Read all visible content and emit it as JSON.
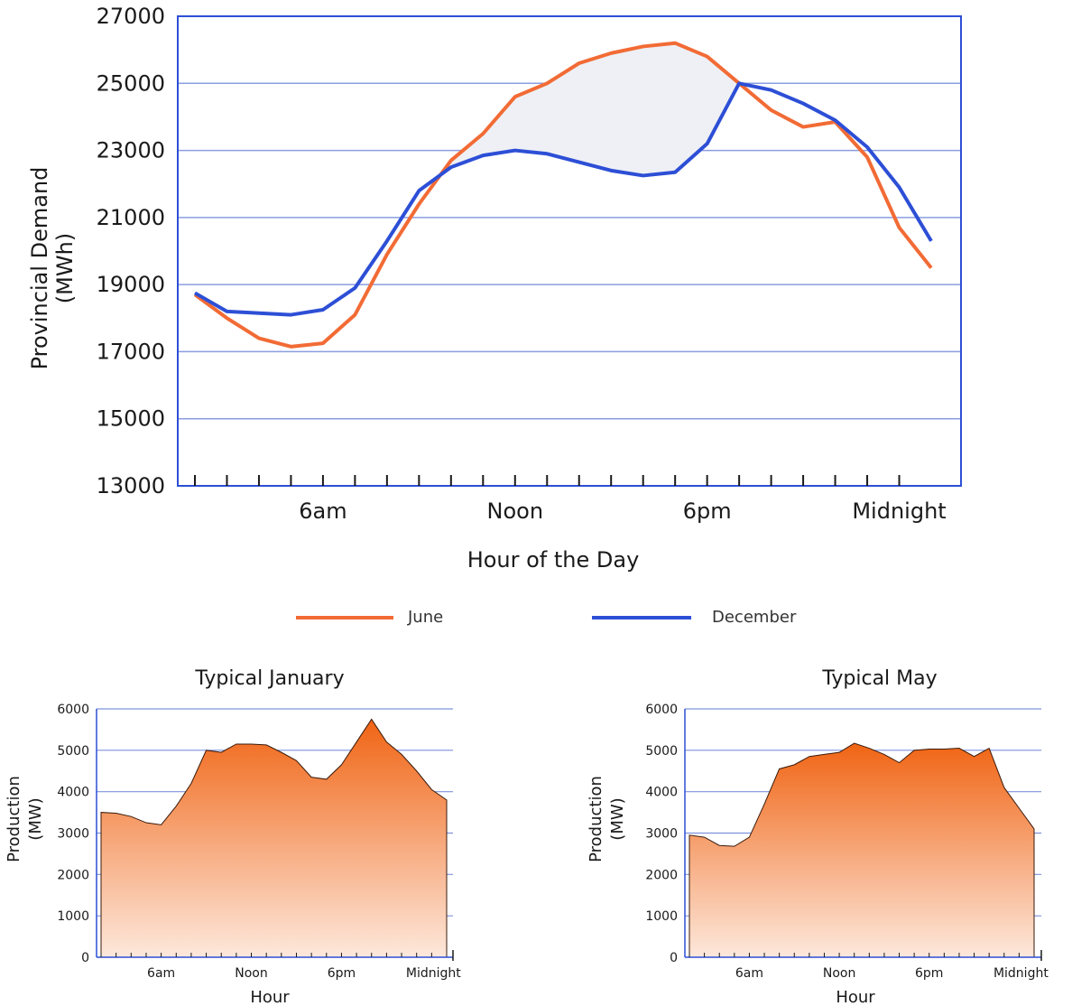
{
  "chart_data": [
    {
      "type": "line",
      "ylabel_line1": "Provincial Demand",
      "ylabel_line2": "(MWh)",
      "xlabel": "Hour of the Day",
      "ylim": [
        13000,
        27000
      ],
      "yticks": [
        "13000",
        "15000",
        "17000",
        "19000",
        "21000",
        "23000",
        "25000",
        "27000"
      ],
      "xtick_labels": [
        {
          "hour": 6,
          "label": "6am"
        },
        {
          "hour": 12,
          "label": "Noon"
        },
        {
          "hour": 18,
          "label": "6pm"
        },
        {
          "hour": 24,
          "label": "Midnight"
        }
      ],
      "x": [
        1,
        2,
        3,
        4,
        5,
        6,
        7,
        8,
        9,
        10,
        11,
        12,
        13,
        14,
        15,
        16,
        17,
        18,
        19,
        20,
        21,
        22,
        23,
        24
      ],
      "grid": true,
      "legend_position": "bottom",
      "series": [
        {
          "name": "June",
          "color": "#f26b35",
          "values": [
            18700,
            18000,
            17400,
            17150,
            17250,
            18100,
            19900,
            21400,
            22700,
            23500,
            24600,
            25000,
            25600,
            25900,
            26100,
            26200,
            25800,
            25000,
            24200,
            23700,
            23850,
            22800,
            20700,
            19500
          ]
        },
        {
          "name": "December",
          "color": "#2d4fd6",
          "values": [
            18750,
            18200,
            18150,
            18100,
            18250,
            18900,
            20300,
            21800,
            22500,
            22850,
            23000,
            22900,
            22650,
            22400,
            22250,
            22350,
            23200,
            25000,
            24800,
            24400,
            23900,
            23100,
            21900,
            20300
          ]
        }
      ],
      "shaded_between": "June and December",
      "shade_color": "#eef0f5"
    },
    {
      "type": "area",
      "title": "Typical January",
      "ylabel_line1": "Production",
      "ylabel_line2": "(MW)",
      "xlabel": "Hour",
      "ylim": [
        0,
        6000
      ],
      "yticks": [
        "0",
        "1000",
        "2000",
        "3000",
        "4000",
        "5000",
        "6000"
      ],
      "xtick_labels": [
        {
          "hour": 6,
          "label": "6am"
        },
        {
          "hour": 12,
          "label": "Noon"
        },
        {
          "hour": 18,
          "label": "6pm"
        },
        {
          "hour": 24,
          "label": "Midnight"
        }
      ],
      "x": [
        1,
        2,
        3,
        4,
        5,
        6,
        7,
        8,
        9,
        10,
        11,
        12,
        13,
        14,
        15,
        16,
        17,
        18,
        19,
        20,
        21,
        22,
        23,
        24
      ],
      "values": [
        3500,
        3480,
        3400,
        3250,
        3200,
        3650,
        4200,
        5000,
        4950,
        5150,
        5150,
        5130,
        4950,
        4750,
        4350,
        4300,
        4650,
        5200,
        5750,
        5200,
        4900,
        4500,
        4050,
        3800
      ],
      "grid": true,
      "fill_color_top": "#f06414",
      "fill_color_bottom": "#fde8dc"
    },
    {
      "type": "area",
      "title": "Typical May",
      "ylabel_line1": "Production",
      "ylabel_line2": "(MW)",
      "xlabel": "Hour",
      "ylim": [
        0,
        6000
      ],
      "yticks": [
        "0",
        "1000",
        "2000",
        "3000",
        "4000",
        "5000",
        "6000"
      ],
      "xtick_labels": [
        {
          "hour": 6,
          "label": "6am"
        },
        {
          "hour": 12,
          "label": "Noon"
        },
        {
          "hour": 18,
          "label": "6pm"
        },
        {
          "hour": 24,
          "label": "Midnight"
        }
      ],
      "x": [
        1,
        2,
        3,
        4,
        5,
        6,
        7,
        8,
        9,
        10,
        11,
        12,
        13,
        14,
        15,
        16,
        17,
        18,
        19,
        20,
        21,
        22,
        23,
        24
      ],
      "values": [
        2950,
        2900,
        2700,
        2680,
        2900,
        3700,
        4550,
        4650,
        4850,
        4900,
        4950,
        5170,
        5050,
        4900,
        4700,
        5000,
        5030,
        5030,
        5050,
        4850,
        5050,
        4100,
        3600,
        3100
      ],
      "grid": true,
      "fill_color_top": "#f06414",
      "fill_color_bottom": "#fde8dc"
    }
  ]
}
